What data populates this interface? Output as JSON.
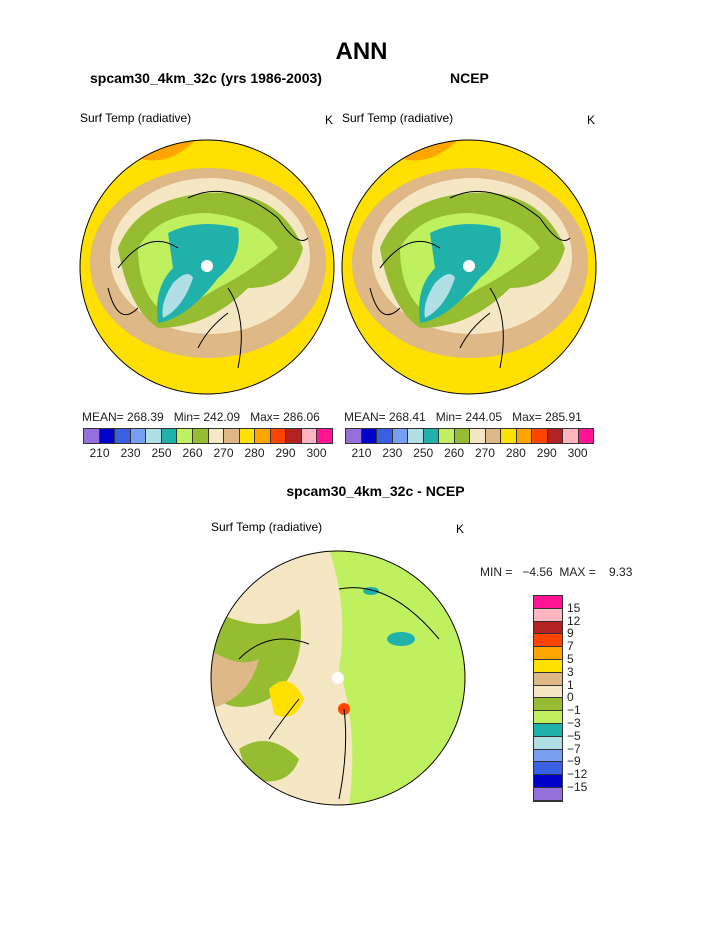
{
  "title": "ANN",
  "panels": [
    {
      "heading": "spcam30_4km_32c (yrs 1986-2003)",
      "variable": "Surf Temp (radiative)",
      "units": "K",
      "stats": "MEAN= 268.39   Min= 242.09   Max= 286.06"
    },
    {
      "heading": "NCEP",
      "variable": "Surf Temp (radiative)",
      "units": "K",
      "stats": "MEAN= 268.41   Min= 244.05   Max= 285.91"
    }
  ],
  "diff": {
    "heading": "spcam30_4km_32c - NCEP",
    "variable": "Surf Temp (radiative)",
    "units": "K",
    "stats": "MIN =   −4.56  MAX =    9.33"
  },
  "colors": [
    "#9370db",
    "#0000cd",
    "#3a5fe0",
    "#779ef0",
    "#b0e0e6",
    "#20b2aa",
    "#bff060",
    "#96bd32",
    "#f5e6c4",
    "#deb887",
    "#ffe000",
    "#ffa500",
    "#ff4500",
    "#b22222",
    "#ffb6c1",
    "#ff1493"
  ],
  "abs_labels": [
    "210",
    "230",
    "250",
    "260",
    "270",
    "280",
    "290",
    "300"
  ],
  "diff_labels": [
    "15",
    "12",
    "9",
    "7",
    "5",
    "3",
    "1",
    "0",
    "−1",
    "−3",
    "−5",
    "−7",
    "−9",
    "−12",
    "−15"
  ]
}
